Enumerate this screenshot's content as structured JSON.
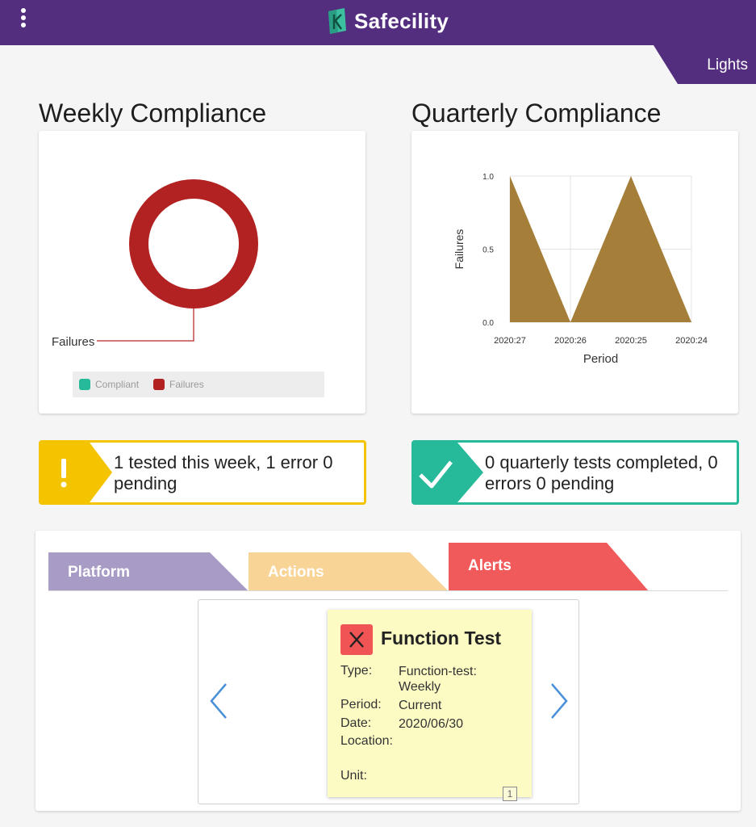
{
  "app": {
    "brand_name": "Safecility",
    "brand_color": "#532d7e",
    "nav_tab_label": "Lights"
  },
  "weekly": {
    "title": "Weekly Compliance",
    "donut_callout": "Failures",
    "legend": [
      {
        "label": "Compliant",
        "color": "#26b99a"
      },
      {
        "label": "Failures",
        "color": "#b22222"
      }
    ]
  },
  "quarterly": {
    "title": "Quarterly Compliance"
  },
  "status": {
    "weekly_message": "1 tested this week, 1 error 0 pending",
    "weekly_color": "#f5c400",
    "quarterly_message": "0 quarterly tests completed, 0 errors 0 pending",
    "quarterly_color": "#26b99a"
  },
  "tabs": [
    {
      "label": "Platform",
      "color": "#a89bc5"
    },
    {
      "label": "Actions",
      "color": "#f8d597"
    },
    {
      "label": "Alerts",
      "color": "#f05a5a"
    }
  ],
  "alert": {
    "title": "Function Test",
    "type_label": "Type:",
    "type_value": "Function-test: Weekly",
    "period_label": "Period:",
    "period_value": "Current",
    "date_label": "Date:",
    "date_value": "2020/06/30",
    "location_label": "Location:",
    "location_value": "",
    "unit_label": "Unit:",
    "unit_value": "",
    "page_number": "1"
  },
  "chart_data": [
    {
      "type": "pie",
      "variant": "donut",
      "categories": [
        "Compliant",
        "Failures"
      ],
      "values": [
        0,
        1
      ],
      "colors": [
        "#26b99a",
        "#b22222"
      ],
      "title": "",
      "legend": "bottom"
    },
    {
      "type": "area",
      "categories": [
        "2020:27",
        "2020:26",
        "2020:25",
        "2020:24"
      ],
      "series": [
        {
          "values": [
            1,
            0,
            1,
            0
          ],
          "color": "#a57f3a"
        }
      ],
      "title": "",
      "xlabel": "Period",
      "ylabel": "Failures",
      "ylim": [
        0,
        1
      ],
      "yticks": [
        "0.0",
        "0.5",
        "1.0"
      ],
      "grid": true
    }
  ]
}
